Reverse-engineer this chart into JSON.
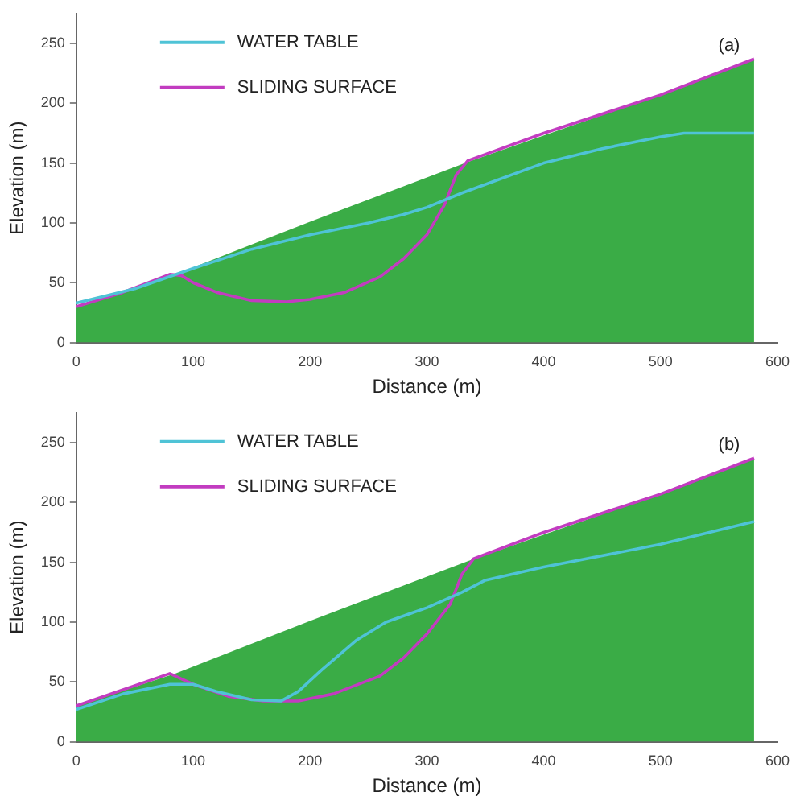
{
  "chart_data": [
    {
      "type": "line",
      "xlabel": "Distance (m)",
      "ylabel": "Elevation (m)",
      "annotations": [
        "(a)"
      ],
      "xlim": [
        0,
        600
      ],
      "xticks": [
        0,
        100,
        200,
        300,
        400,
        500,
        600
      ],
      "ylim": [
        0,
        275
      ],
      "yticks": [
        0,
        50,
        100,
        150,
        200,
        250
      ],
      "grid": false,
      "legend": "top left",
      "marker": "none",
      "line_style": "solid",
      "series": [
        {
          "type": "area",
          "color": "#3aac46",
          "x": [
            0,
            85,
            200,
            335,
            500,
            580
          ],
          "values": [
            30,
            57,
            101,
            151,
            207,
            237
          ]
        },
        {
          "name": "WATER TABLE",
          "color": "#4fc3d6",
          "x": [
            0,
            50,
            100,
            150,
            200,
            250,
            280,
            300,
            330,
            400,
            450,
            500,
            520,
            580
          ],
          "values": [
            33,
            45,
            62,
            78,
            90,
            100,
            107,
            113,
            125,
            150,
            162,
            172,
            175,
            175
          ]
        },
        {
          "name": "SLIDING SURFACE",
          "color": "#c23cc0",
          "x": [
            0,
            40,
            80,
            90,
            100,
            120,
            150,
            180,
            200,
            230,
            260,
            280,
            300,
            315,
            325,
            335,
            400,
            500,
            580
          ],
          "values": [
            30,
            42,
            57,
            56,
            50,
            42,
            35,
            34,
            36,
            42,
            55,
            70,
            90,
            115,
            140,
            152,
            175,
            207,
            237
          ]
        }
      ]
    },
    {
      "type": "line",
      "xlabel": "Distance (m)",
      "ylabel": "Elevation (m)",
      "annotations": [
        "(b)"
      ],
      "xlim": [
        0,
        600
      ],
      "xticks": [
        0,
        100,
        200,
        300,
        400,
        500,
        600
      ],
      "ylim": [
        0,
        275
      ],
      "yticks": [
        0,
        50,
        100,
        150,
        200,
        250
      ],
      "grid": false,
      "legend": "top left",
      "marker": "none",
      "line_style": "solid",
      "series": [
        {
          "type": "area",
          "color": "#3aac46",
          "x": [
            0,
            85,
            200,
            335,
            500,
            580
          ],
          "values": [
            30,
            57,
            101,
            151,
            207,
            237
          ]
        },
        {
          "name": "WATER TABLE",
          "color": "#4fc3d6",
          "x": [
            0,
            40,
            80,
            100,
            120,
            150,
            175,
            190,
            210,
            240,
            265,
            300,
            330,
            350,
            400,
            500,
            580
          ],
          "values": [
            27,
            40,
            48,
            48,
            42,
            35,
            34,
            42,
            60,
            85,
            100,
            112,
            125,
            135,
            146,
            165,
            184
          ]
        },
        {
          "name": "SLIDING SURFACE",
          "color": "#c23cc0",
          "x": [
            0,
            80,
            100,
            130,
            160,
            190,
            220,
            260,
            280,
            300,
            320,
            330,
            340,
            400,
            500,
            580
          ],
          "values": [
            30,
            57,
            48,
            38,
            34,
            34,
            40,
            55,
            70,
            90,
            115,
            140,
            153,
            175,
            207,
            237
          ]
        }
      ]
    }
  ]
}
